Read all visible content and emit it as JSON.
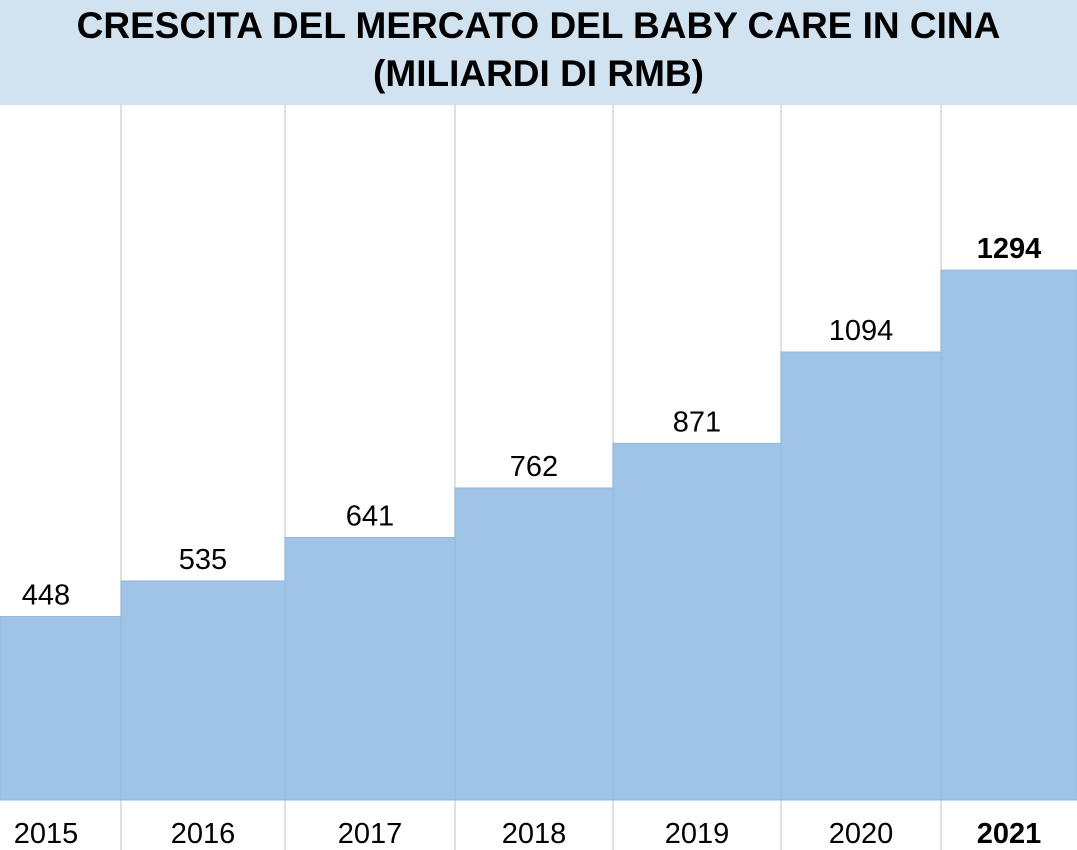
{
  "chart_data": {
    "type": "bar",
    "title_lines": [
      "CRESCITA DEL MERCATO DEL BABY CARE IN CINA",
      "(MILIARDI DI RMB)"
    ],
    "categories": [
      "2015",
      "2016",
      "2017",
      "2018",
      "2019",
      "2020",
      "2021"
    ],
    "values": [
      448,
      535,
      641,
      762,
      871,
      1094,
      1294
    ],
    "highlight": "2021",
    "colors": {
      "bar": "#9fc4e7",
      "title_background": "#d1e2f1",
      "grid": "#d6d6d6"
    },
    "grid": "vertical",
    "legend": "none"
  }
}
